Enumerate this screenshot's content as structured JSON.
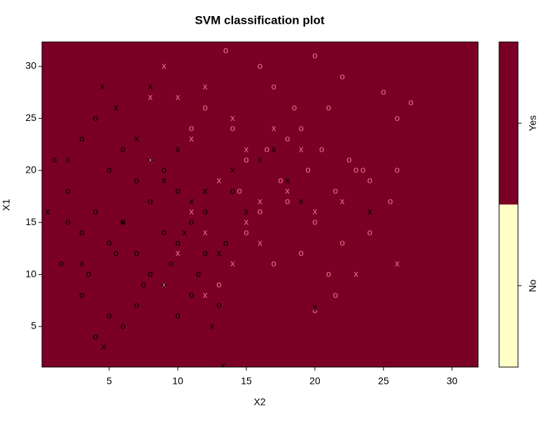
{
  "chart_data": {
    "type": "scatter",
    "title": "SVM classification plot",
    "x_label": "X2",
    "y_label": "X1",
    "xlim": [
      0.1,
      31.9
    ],
    "ylim": [
      1.1,
      32.35
    ],
    "xticks": [
      5,
      10,
      15,
      20,
      25,
      30
    ],
    "yticks": [
      5,
      10,
      15,
      20,
      25,
      30
    ],
    "background_color": "#7a0025",
    "colorbar": {
      "categories": [
        "No",
        "Yes"
      ],
      "colors": [
        "#ffffc8",
        "#7a0025"
      ]
    },
    "series": [
      {
        "marker": "o",
        "color": "#f0708a",
        "x": [
          13.5,
          16,
          20,
          22,
          25,
          26,
          27,
          14,
          17,
          18.5,
          19,
          21,
          23,
          15,
          16.5,
          18,
          20.5,
          22.5,
          24,
          14.5,
          17.5,
          19.5,
          21.5,
          23.5,
          25.5,
          16,
          18,
          20,
          22,
          24,
          19,
          21,
          17,
          15,
          13,
          12,
          11,
          26,
          21.5,
          20
        ],
        "values": [
          31.5,
          30,
          31,
          29,
          27.5,
          25,
          26.5,
          24,
          28,
          26,
          24,
          26,
          20,
          21,
          22,
          23,
          22,
          21,
          19,
          18,
          19,
          20,
          18,
          20,
          17,
          16,
          17,
          15,
          13,
          14,
          12,
          10,
          11,
          14,
          9,
          26,
          24,
          20,
          8,
          6.5
        ]
      },
      {
        "marker": "x",
        "color": "#f0708a",
        "x": [
          9,
          10,
          12,
          14,
          11,
          15,
          17,
          8,
          13,
          16,
          18,
          19,
          20,
          22,
          12,
          10,
          14,
          16,
          26,
          23,
          9,
          12,
          15,
          8,
          11
        ],
        "values": [
          30,
          27,
          28,
          25,
          23,
          22,
          24,
          21,
          19,
          17,
          18,
          22,
          16,
          17,
          14,
          12,
          11,
          13,
          11,
          10,
          9,
          8,
          15,
          27,
          16
        ]
      },
      {
        "marker": "o",
        "color": "#000000",
        "x": [
          1,
          2,
          3,
          4,
          5,
          6,
          7,
          8,
          9,
          10,
          2,
          3,
          4,
          5,
          6,
          7,
          8,
          9,
          10,
          11,
          12,
          1.5,
          3.5,
          5.5,
          7.5,
          9.5,
          11.5,
          13.5,
          3,
          5,
          7,
          9,
          11,
          13,
          4,
          6,
          8,
          10,
          12,
          14
        ],
        "values": [
          21,
          18,
          23,
          25,
          20,
          22,
          19,
          21,
          20,
          18,
          15,
          14,
          16,
          13,
          15,
          12,
          17,
          14,
          13,
          15,
          16,
          11,
          10,
          12,
          9,
          11,
          10,
          13,
          8,
          6,
          7,
          9,
          8,
          7,
          4,
          5,
          10,
          6,
          12,
          18
        ]
      },
      {
        "marker": "x",
        "color": "#000000",
        "x": [
          0.5,
          2,
          3,
          4.5,
          5.5,
          7,
          8,
          9,
          10,
          11,
          12,
          13,
          14,
          15,
          16,
          17,
          18,
          19,
          20,
          24,
          12.5,
          13.3,
          4.6,
          6,
          10.5
        ],
        "values": [
          16,
          21,
          11,
          28,
          26,
          23,
          28,
          19,
          22,
          17,
          18,
          12,
          20,
          16,
          21,
          22,
          19,
          17,
          6.8,
          16,
          5,
          1.2,
          3,
          15,
          14
        ]
      }
    ]
  }
}
